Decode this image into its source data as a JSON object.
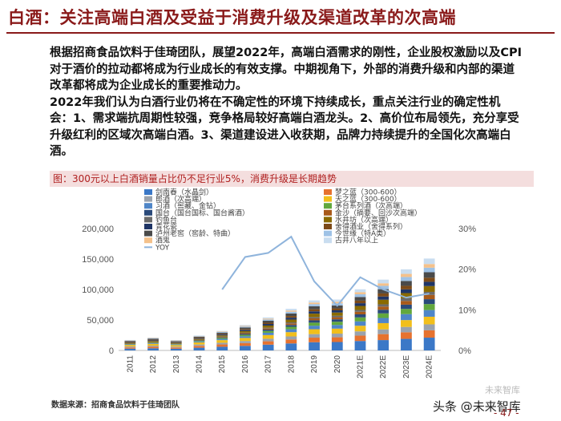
{
  "page": {
    "title": "白酒：关注高端白酒及受益于消费升级及渠道改革的次高端",
    "paragraphs": [
      "根据招商食品饮料于佳琦团队，展望2022年，高端白酒需求的刚性，企业股权激励以及CPI对于酒价的拉动都将成为行业成长的有效支撑。中期视角下，外部的消费升级和内部的渠道改革都将成为企业成长的重要推动力。",
      "2022年我们认为白酒行业仍将在不确定性的环境下持续成长，重点关注行业的确定性机会：1、需求端抗周期性较强，竞争格局较好高端白酒龙头。2、高价位布局领先，充分享受升级红利的区域次高端白酒。3、渠道建设进入收获期，品牌力持续提升的全国化次高端白酒。"
    ],
    "chart_caption": "图：300元以上白酒销量占比仍不足行业5%，消费升级是长期趋势",
    "source": "数据来源：招商食品饮料于佳琦团队",
    "watermark_main": "头条 @未来智库",
    "watermark_faint": "未来智库",
    "page_number": "- 47 -"
  },
  "chart_data": {
    "type": "bar",
    "stacked": true,
    "categories": [
      "2011",
      "2012",
      "2013",
      "2014",
      "2015",
      "2016",
      "2017",
      "2018",
      "2019",
      "2020",
      "2021E",
      "2022E",
      "2023E",
      "2024E"
    ],
    "ylim_left": [
      0,
      200000
    ],
    "yticks_left": [
      "0",
      "50,000",
      "100,000",
      "150,000",
      "200,000"
    ],
    "ylim_right": [
      0,
      30
    ],
    "yticks_right": [
      "0%",
      "10%",
      "20%",
      "30%"
    ],
    "legend_position": "top",
    "series": [
      {
        "name": "剑南春（水晶剑）",
        "color": "#3b78c7",
        "values": [
          3000,
          3500,
          2800,
          4500,
          6000,
          7500,
          9500,
          11500,
          13500,
          13800,
          15500,
          17000,
          19000,
          21000
        ]
      },
      {
        "name": "梦之蓝（300-600）",
        "color": "#e6722f",
        "values": [
          2000,
          2500,
          2000,
          3000,
          3800,
          4500,
          5500,
          6500,
          7500,
          7800,
          8800,
          9800,
          10800,
          12000
        ]
      },
      {
        "name": "郎酒（次高端）",
        "color": "#9aa2ad",
        "values": [
          1500,
          1800,
          1500,
          2200,
          2800,
          3500,
          4200,
          5000,
          5800,
          6000,
          7000,
          7800,
          8800,
          9800
        ]
      },
      {
        "name": "天之蓝（300-600）",
        "color": "#f2bf1b",
        "values": [
          2500,
          3000,
          2500,
          3500,
          4300,
          5000,
          6000,
          7000,
          8000,
          8200,
          9200,
          10200,
          11200,
          12500
        ]
      },
      {
        "name": "习酒（窖藏、金钻）",
        "color": "#4f86c8",
        "values": [
          800,
          1000,
          800,
          1500,
          2000,
          2800,
          3800,
          4800,
          5800,
          6000,
          7200,
          8500,
          9800,
          11000
        ]
      },
      {
        "name": "茅台系列酒（次高端）",
        "color": "#62a83d",
        "values": [
          500,
          700,
          600,
          1000,
          1500,
          2200,
          3000,
          4000,
          5000,
          5300,
          6500,
          7500,
          8500,
          9800
        ]
      },
      {
        "name": "国台（国台国标、国台酱酒）",
        "color": "#2a4a7a",
        "values": [
          300,
          400,
          300,
          700,
          1000,
          1500,
          2200,
          3000,
          3800,
          4000,
          5000,
          6000,
          7000,
          8000
        ]
      },
      {
        "name": "金沙（摘要、回沙次高端）",
        "color": "#a85a1a",
        "values": [
          300,
          400,
          300,
          600,
          900,
          1300,
          1800,
          2500,
          3200,
          3400,
          4300,
          5200,
          6100,
          7000
        ]
      },
      {
        "name": "钓鱼台",
        "color": "#6b6b6b",
        "values": [
          200,
          300,
          200,
          400,
          600,
          900,
          1300,
          1800,
          2300,
          2400,
          3000,
          3700,
          4400,
          5000
        ]
      },
      {
        "name": "水井坊（次高端）",
        "color": "#8a6a00",
        "values": [
          1500,
          1800,
          1400,
          1500,
          1800,
          2500,
          3500,
          4500,
          5500,
          5300,
          6500,
          7500,
          8500,
          9500
        ]
      },
      {
        "name": "青花瓷",
        "color": "#1f3566",
        "values": [
          1000,
          1200,
          1000,
          1200,
          1500,
          2000,
          2600,
          3200,
          3800,
          3600,
          4500,
          5300,
          6100,
          7000
        ]
      },
      {
        "name": "舍得酒业（舍得系列）",
        "color": "#7c4a18",
        "values": [
          800,
          1000,
          800,
          900,
          1100,
          1500,
          2000,
          2700,
          3300,
          3200,
          4200,
          5000,
          5800,
          6700
        ]
      },
      {
        "name": "泸州老窖（窖龄、特曲）",
        "color": "#4a4a4a",
        "values": [
          1200,
          1500,
          1200,
          1500,
          1900,
          2500,
          3300,
          4200,
          5000,
          4800,
          6000,
          7000,
          8000,
          9000
        ]
      },
      {
        "name": "今世缘（特A类）",
        "color": "#9ec2e6",
        "values": [
          600,
          800,
          600,
          800,
          1100,
          1500,
          2100,
          2800,
          3500,
          3500,
          4500,
          5500,
          6500,
          7500
        ]
      },
      {
        "name": "酒鬼",
        "color": "#f4c18b",
        "values": [
          400,
          500,
          400,
          500,
          700,
          1000,
          1400,
          2000,
          2600,
          2600,
          3400,
          4200,
          5100,
          6000
        ]
      },
      {
        "name": "古井八年以上",
        "color": "#c9ddf0",
        "values": [
          600,
          800,
          600,
          800,
          1100,
          1500,
          2000,
          2800,
          3500,
          3600,
          4700,
          6000,
          7500,
          9000
        ]
      }
    ],
    "line": {
      "name": "YOY",
      "color": "#8fb4dc",
      "values": [
        null,
        null,
        null,
        null,
        15,
        23,
        24,
        28,
        17,
        11,
        18,
        15,
        13,
        14
      ]
    }
  }
}
